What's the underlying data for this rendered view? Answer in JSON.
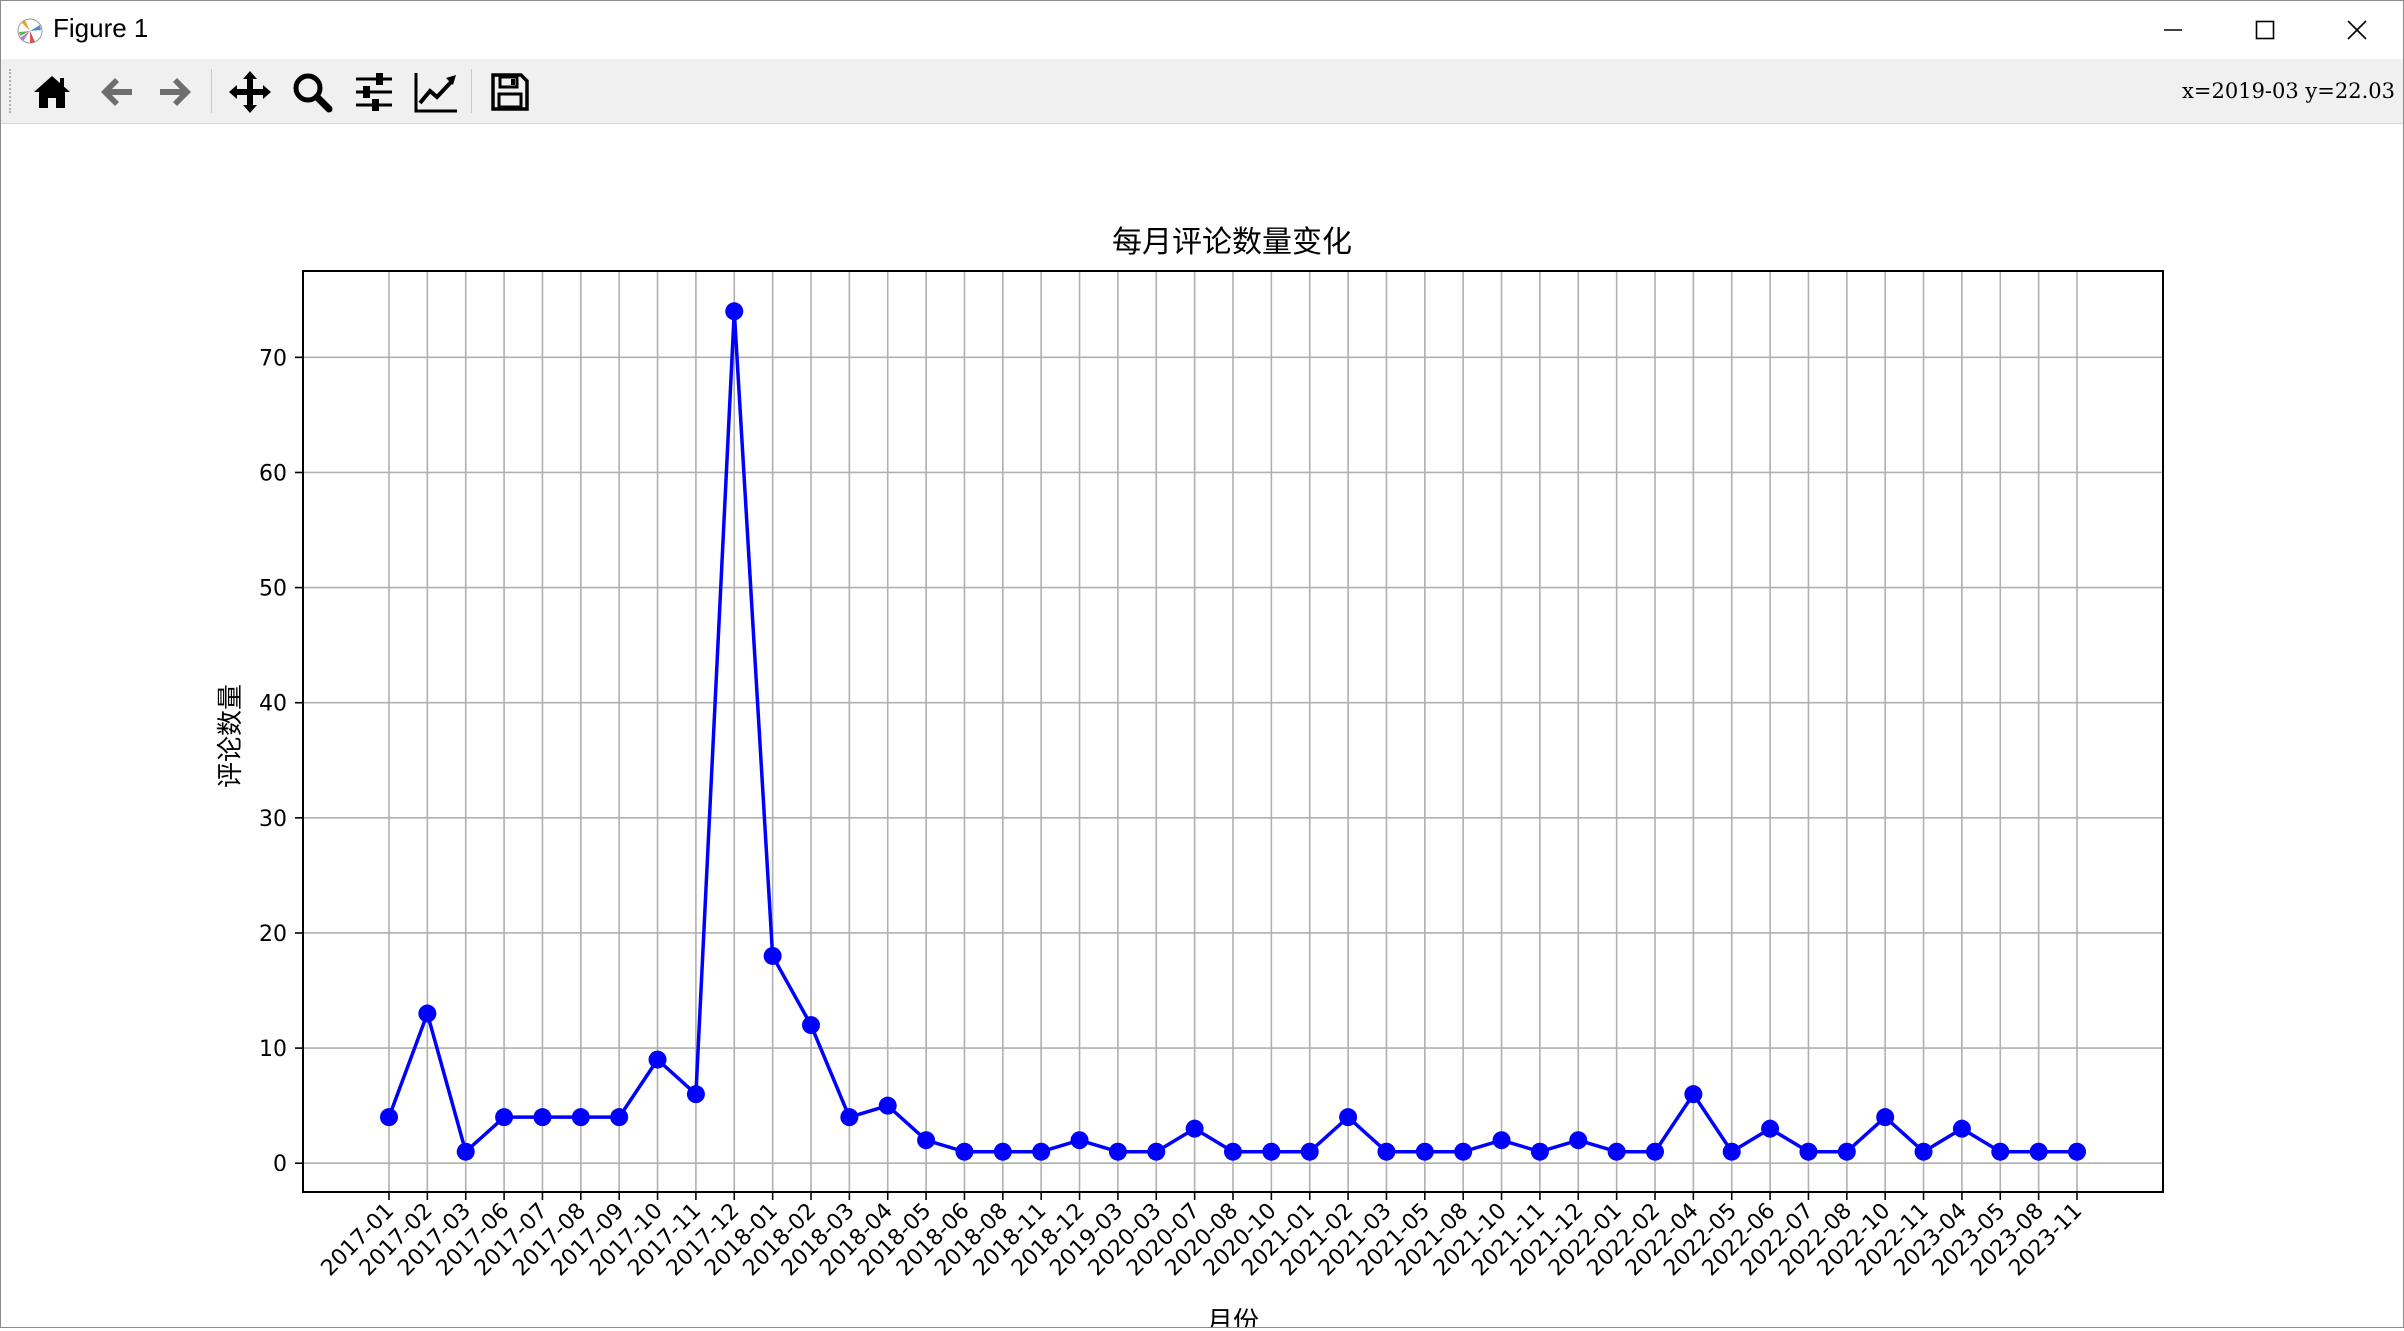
{
  "window": {
    "title": "Figure 1",
    "icon": "matplotlib-logo-icon",
    "controls": [
      "minimize-icon",
      "maximize-icon",
      "close-icon"
    ]
  },
  "toolbar": {
    "buttons": [
      "home-icon",
      "back-icon",
      "forward-icon",
      "pan-icon",
      "zoom-icon",
      "configure-subplots-icon",
      "edit-axis-icon",
      "save-icon"
    ],
    "coordinates": "x=2019-03 y=22.03"
  },
  "chart_data": {
    "type": "line",
    "title": "每月评论数量变化",
    "xlabel": "月份",
    "ylabel": "评论数量",
    "categories": [
      "2017-01",
      "2017-02",
      "2017-03",
      "2017-06",
      "2017-07",
      "2017-08",
      "2017-09",
      "2017-10",
      "2017-11",
      "2017-12",
      "2018-01",
      "2018-02",
      "2018-03",
      "2018-04",
      "2018-05",
      "2018-06",
      "2018-08",
      "2018-11",
      "2018-12",
      "2019-03",
      "2020-03",
      "2020-07",
      "2020-08",
      "2020-10",
      "2021-01",
      "2021-02",
      "2021-03",
      "2021-05",
      "2021-08",
      "2021-10",
      "2021-11",
      "2021-12",
      "2022-01",
      "2022-02",
      "2022-04",
      "2022-05",
      "2022-06",
      "2022-07",
      "2022-08",
      "2022-10",
      "2022-11",
      "2023-04",
      "2023-05",
      "2023-08",
      "2023-11"
    ],
    "values": [
      4,
      13,
      1,
      4,
      4,
      4,
      4,
      9,
      6,
      74,
      18,
      12,
      4,
      5,
      2,
      1,
      1,
      1,
      2,
      1,
      1,
      3,
      1,
      1,
      1,
      4,
      1,
      1,
      1,
      2,
      1,
      2,
      1,
      1,
      6,
      1,
      3,
      1,
      1,
      4,
      1,
      3,
      1,
      1,
      1
    ],
    "yticks": [
      0,
      10,
      20,
      30,
      40,
      50,
      60,
      70
    ],
    "ylim": [
      -2.5,
      77.5
    ],
    "grid": true,
    "line_color": "#0000ff",
    "marker": "circle"
  }
}
